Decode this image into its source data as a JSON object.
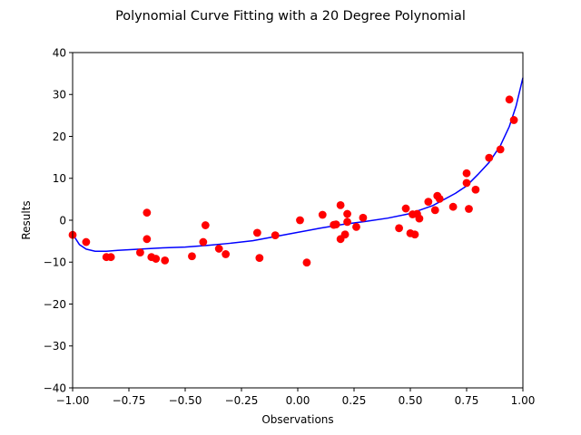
{
  "chart_data": {
    "type": "scatter",
    "title": "Polynomial Curve Fitting with a 20 Degree Polynomial",
    "xlabel": "Observations",
    "ylabel": "Results",
    "xlim": [
      -1.0,
      1.0
    ],
    "ylim": [
      -40,
      40
    ],
    "grid": false,
    "x_ticks": [
      -1.0,
      -0.75,
      -0.5,
      -0.25,
      0.0,
      0.25,
      0.5,
      0.75,
      1.0
    ],
    "x_tick_labels": [
      "−1.00",
      "−0.75",
      "−0.50",
      "−0.25",
      "0.00",
      "0.25",
      "0.50",
      "0.75",
      "1.00"
    ],
    "y_ticks": [
      -40,
      -30,
      -20,
      -10,
      0,
      10,
      20,
      30,
      40
    ],
    "y_tick_labels": [
      "−40",
      "−30",
      "−20",
      "−10",
      "0",
      "10",
      "20",
      "30",
      "40"
    ],
    "series": [
      {
        "type": "scatter",
        "color": "#ff0000",
        "points": [
          [
            -1.0,
            -3.5
          ],
          [
            -0.94,
            -5.2
          ],
          [
            -0.85,
            -8.8
          ],
          [
            -0.83,
            -8.8
          ],
          [
            -0.7,
            -7.7
          ],
          [
            -0.67,
            1.8
          ],
          [
            -0.67,
            -4.5
          ],
          [
            -0.65,
            -8.8
          ],
          [
            -0.63,
            -9.2
          ],
          [
            -0.59,
            -9.6
          ],
          [
            -0.47,
            -8.6
          ],
          [
            -0.42,
            -5.2
          ],
          [
            -0.41,
            -1.2
          ],
          [
            -0.35,
            -6.8
          ],
          [
            -0.32,
            -8.1
          ],
          [
            -0.18,
            -3.0
          ],
          [
            -0.17,
            -9.0
          ],
          [
            -0.1,
            -3.6
          ],
          [
            0.01,
            0.0
          ],
          [
            0.04,
            -10.1
          ],
          [
            0.11,
            1.3
          ],
          [
            0.16,
            -1.1
          ],
          [
            0.17,
            -1.0
          ],
          [
            0.19,
            3.6
          ],
          [
            0.19,
            -4.5
          ],
          [
            0.21,
            -3.4
          ],
          [
            0.22,
            1.5
          ],
          [
            0.22,
            -0.4
          ],
          [
            0.26,
            -1.6
          ],
          [
            0.29,
            0.6
          ],
          [
            0.45,
            -1.9
          ],
          [
            0.48,
            2.8
          ],
          [
            0.5,
            -3.1
          ],
          [
            0.51,
            1.4
          ],
          [
            0.52,
            -3.4
          ],
          [
            0.53,
            1.5
          ],
          [
            0.54,
            0.4
          ],
          [
            0.58,
            4.4
          ],
          [
            0.61,
            2.4
          ],
          [
            0.62,
            5.8
          ],
          [
            0.63,
            5.1
          ],
          [
            0.69,
            3.2
          ],
          [
            0.75,
            8.9
          ],
          [
            0.75,
            11.2
          ],
          [
            0.76,
            2.7
          ],
          [
            0.79,
            7.3
          ],
          [
            0.85,
            14.9
          ],
          [
            0.9,
            16.9
          ],
          [
            0.94,
            28.8
          ],
          [
            0.96,
            23.9
          ]
        ]
      },
      {
        "type": "line",
        "color": "#0000ff",
        "points": [
          [
            -1.0,
            -3.3
          ],
          [
            -0.97,
            -5.8
          ],
          [
            -0.94,
            -6.9
          ],
          [
            -0.9,
            -7.4
          ],
          [
            -0.85,
            -7.4
          ],
          [
            -0.8,
            -7.2
          ],
          [
            -0.7,
            -6.9
          ],
          [
            -0.6,
            -6.6
          ],
          [
            -0.5,
            -6.4
          ],
          [
            -0.4,
            -6.0
          ],
          [
            -0.3,
            -5.5
          ],
          [
            -0.2,
            -4.9
          ],
          [
            -0.1,
            -3.9
          ],
          [
            0.0,
            -2.9
          ],
          [
            0.1,
            -1.9
          ],
          [
            0.2,
            -1.0
          ],
          [
            0.3,
            -0.3
          ],
          [
            0.4,
            0.5
          ],
          [
            0.5,
            1.6
          ],
          [
            0.6,
            3.5
          ],
          [
            0.7,
            6.4
          ],
          [
            0.75,
            8.2
          ],
          [
            0.8,
            10.9
          ],
          [
            0.85,
            13.8
          ],
          [
            0.9,
            17.8
          ],
          [
            0.94,
            22.4
          ],
          [
            0.97,
            27.3
          ],
          [
            1.0,
            34.0
          ]
        ]
      }
    ]
  }
}
